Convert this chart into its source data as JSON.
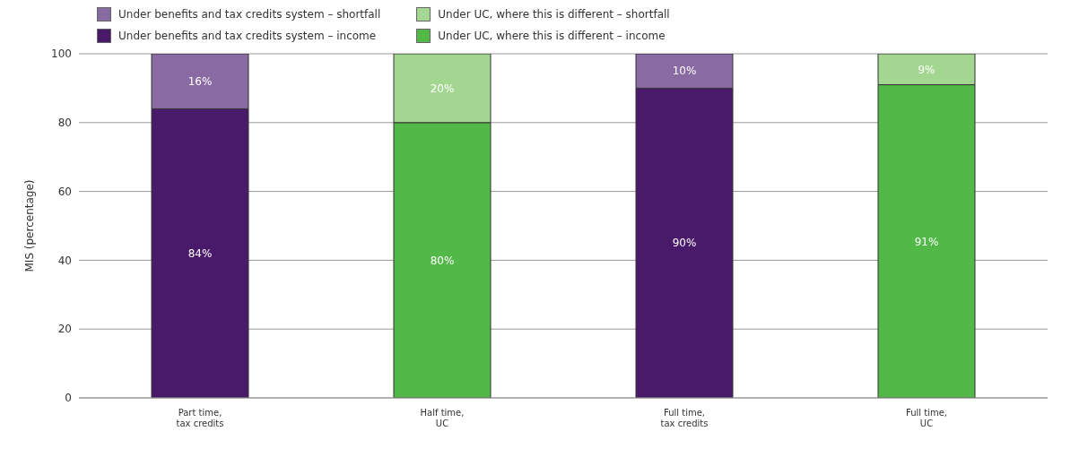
{
  "chart_data": {
    "type": "bar",
    "stacked": true,
    "categories": [
      "Part time,\ntax credits",
      "Half time,\nUC",
      "Full time,\ntax credits",
      "Full time,\nUC"
    ],
    "series": [
      {
        "name": "Under benefits and tax credits system – income",
        "color": "#4a1a6a",
        "values": [
          84,
          null,
          90,
          null
        ],
        "value_labels": [
          "84%",
          null,
          "90%",
          null
        ]
      },
      {
        "name": "Under UC, where this is different – income",
        "color": "#52b848",
        "values": [
          null,
          80,
          null,
          91
        ],
        "value_labels": [
          null,
          "80%",
          null,
          "91%"
        ]
      },
      {
        "name": "Under benefits and tax credits system – shortfall",
        "color": "#8a6aa2",
        "values": [
          16,
          null,
          10,
          null
        ],
        "value_labels": [
          "16%",
          null,
          "10%",
          null
        ]
      },
      {
        "name": "Under UC, where this is different – shortfall",
        "color": "#a3d690",
        "values": [
          null,
          20,
          null,
          9
        ],
        "value_labels": [
          null,
          "20%",
          null,
          "9%"
        ]
      }
    ],
    "ylabel": "MIS (percentage)",
    "ylim": [
      0,
      100
    ],
    "yticks": [
      0,
      20,
      40,
      60,
      80,
      100
    ],
    "grid": "y",
    "legend": "top left"
  }
}
